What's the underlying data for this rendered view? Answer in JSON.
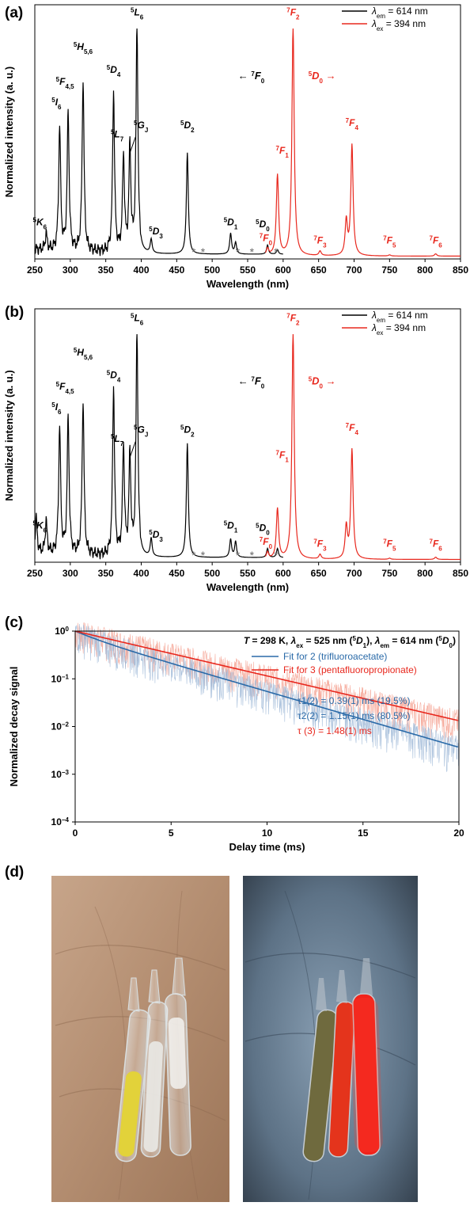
{
  "panels": {
    "a": {
      "label": "(a)",
      "xlabel": "Wavelength (nm)",
      "ylabel": "Normalized intensity (a. u.)",
      "legend": [
        {
          "text": "λem = 614 nm",
          "sym": "λ",
          "sub": "em",
          "rest": " = 614 nm",
          "color": "#000000"
        },
        {
          "text": "λex = 394 nm",
          "sym": "λ",
          "sub": "ex",
          "rest": " = 394 nm",
          "color": "#e8281e"
        }
      ],
      "arrow_left": "← 7F0",
      "arrow_right": "5D0 →"
    },
    "b": {
      "label": "(b)",
      "xlabel": "Wavelength (nm)",
      "ylabel": "Normalized intensity (a. u.)",
      "legend": [
        {
          "text": "λem = 614 nm",
          "sym": "λ",
          "sub": "em",
          "rest": " = 614 nm",
          "color": "#000000"
        },
        {
          "text": "λex = 394 nm",
          "sym": "λ",
          "sub": "ex",
          "rest": " = 394 nm",
          "color": "#e8281e"
        }
      ],
      "arrow_left": "← 7F0",
      "arrow_right": "5D0 →"
    },
    "c": {
      "label": "(c)",
      "xlabel": "Delay time (ms)",
      "ylabel": "Normalized decay signal",
      "header": "T = 298 K, λex = 525 nm (5D1), λem = 614 nm (5D0)",
      "legend": [
        {
          "text": "Fit for 2 (trifluoroacetate)",
          "color": "#2a6aa8"
        },
        {
          "text": "Fit for 3 (pentafluoropropionate)",
          "color": "#e8281e"
        }
      ],
      "lifetimes": [
        {
          "text": "τ1(2) = 0.39(1) ms (19.5%)",
          "color": "#2a6aa8"
        },
        {
          "text": "τ2(2) = 1.15(1) ms (80.5%)",
          "color": "#2a6aa8"
        },
        {
          "text": "τ (3) = 1.48(1) ms",
          "color": "#e8281e"
        }
      ]
    },
    "d": {
      "label": "(d)"
    }
  },
  "chart_data": [
    {
      "panel": "a",
      "type": "line",
      "xlabel": "Wavelength (nm)",
      "ylabel": "Normalized intensity (a. u.)",
      "xlim": [
        250,
        850
      ],
      "xticks": [
        250,
        300,
        350,
        400,
        450,
        500,
        550,
        600,
        650,
        700,
        750,
        800,
        850
      ],
      "ylim": [
        0,
        1
      ],
      "series": [
        {
          "name": "λem = 614 nm",
          "color": "#000000",
          "peaks": [
            [
              266,
              0.07
            ],
            [
              285,
              0.54
            ],
            [
              297,
              0.6
            ],
            [
              318,
              0.75
            ],
            [
              361,
              0.7
            ],
            [
              375,
              0.42
            ],
            [
              384,
              0.46
            ],
            [
              394,
              1.0
            ],
            [
              414,
              0.06
            ],
            [
              465,
              0.44
            ],
            [
              526,
              0.09
            ],
            [
              533,
              0.05
            ],
            [
              578,
              0.04
            ],
            [
              592,
              0.02
            ]
          ]
        },
        {
          "name": "λex = 394 nm",
          "color": "#e8281e",
          "peaks": [
            [
              578,
              0.03
            ],
            [
              592,
              0.35
            ],
            [
              614,
              1.0
            ],
            [
              652,
              0.02
            ],
            [
              689,
              0.15
            ],
            [
              697,
              0.48
            ],
            [
              750,
              0.005
            ],
            [
              815,
              0.01
            ]
          ]
        }
      ],
      "annotations": [
        {
          "text": "5K6",
          "x": 266
        },
        {
          "text": "5I6",
          "x": 285
        },
        {
          "text": "5F4,5",
          "x": 297
        },
        {
          "text": "5H5,6",
          "x": 318
        },
        {
          "text": "5D4",
          "x": 361
        },
        {
          "text": "5L7",
          "x": 375
        },
        {
          "text": "5GJ",
          "x": 384
        },
        {
          "text": "5L6",
          "x": 394
        },
        {
          "text": "5D3",
          "x": 414
        },
        {
          "text": "5D2",
          "x": 465
        },
        {
          "text": "5D1",
          "x": 526
        },
        {
          "text": "5D0",
          "x": 580
        },
        {
          "text": "7F0",
          "x": 580
        },
        {
          "text": "7F1",
          "x": 592
        },
        {
          "text": "7F2",
          "x": 614
        },
        {
          "text": "7F3",
          "x": 652
        },
        {
          "text": "7F4",
          "x": 697
        },
        {
          "text": "7F5",
          "x": 750
        },
        {
          "text": "7F6",
          "x": 815
        }
      ],
      "asterisks": [
        474,
        487,
        536,
        556,
        590
      ]
    },
    {
      "panel": "b",
      "type": "line",
      "xlabel": "Wavelength (nm)",
      "ylabel": "Normalized intensity (a. u.)",
      "xlim": [
        250,
        850
      ],
      "xticks": [
        250,
        300,
        350,
        400,
        450,
        500,
        550,
        600,
        650,
        700,
        750,
        800,
        850
      ],
      "ylim": [
        0,
        1
      ],
      "series": [
        {
          "name": "λem = 614 nm",
          "color": "#000000",
          "peaks": [
            [
              252,
              0.15
            ],
            [
              266,
              0.14
            ],
            [
              285,
              0.56
            ],
            [
              297,
              0.6
            ],
            [
              318,
              0.68
            ],
            [
              361,
              0.74
            ],
            [
              375,
              0.48
            ],
            [
              384,
              0.44
            ],
            [
              394,
              1.0
            ],
            [
              414,
              0.08
            ],
            [
              465,
              0.5
            ],
            [
              526,
              0.08
            ],
            [
              533,
              0.07
            ],
            [
              578,
              0.04
            ],
            [
              592,
              0.04
            ]
          ]
        },
        {
          "name": "λex = 394 nm",
          "color": "#e8281e",
          "peaks": [
            [
              578,
              0.03
            ],
            [
              592,
              0.22
            ],
            [
              614,
              1.0
            ],
            [
              652,
              0.02
            ],
            [
              689,
              0.14
            ],
            [
              697,
              0.48
            ],
            [
              750,
              0.005
            ],
            [
              815,
              0.01
            ]
          ]
        }
      ],
      "annotations": [
        {
          "text": "5K6",
          "x": 266
        },
        {
          "text": "5I6",
          "x": 285
        },
        {
          "text": "5F4,5",
          "x": 297
        },
        {
          "text": "5H5,6",
          "x": 318
        },
        {
          "text": "5D4",
          "x": 361
        },
        {
          "text": "5L7",
          "x": 375
        },
        {
          "text": "5GJ",
          "x": 384
        },
        {
          "text": "5L6",
          "x": 394
        },
        {
          "text": "5D3",
          "x": 414
        },
        {
          "text": "5D2",
          "x": 465
        },
        {
          "text": "5D1",
          "x": 526
        },
        {
          "text": "5D0",
          "x": 580
        },
        {
          "text": "7F0",
          "x": 580
        },
        {
          "text": "7F1",
          "x": 592
        },
        {
          "text": "7F2",
          "x": 614
        },
        {
          "text": "7F3",
          "x": 652
        },
        {
          "text": "7F4",
          "x": 697
        },
        {
          "text": "7F5",
          "x": 750
        },
        {
          "text": "7F6",
          "x": 815
        }
      ],
      "asterisks": [
        474,
        487,
        536,
        556,
        590
      ]
    },
    {
      "panel": "c",
      "type": "line",
      "xlabel": "Delay time (ms)",
      "ylabel": "Normalized decay signal",
      "xlim": [
        0,
        20
      ],
      "xticks": [
        0,
        5,
        10,
        15,
        20
      ],
      "ylim": [
        0.0001,
        1
      ],
      "yscale": "log",
      "yticks": [
        "10^0",
        "10^-1",
        "10^-2",
        "10^-3",
        "10^-4"
      ],
      "series": [
        {
          "name": "Fit for 2 (trifluoroacetate)",
          "color": "#2a6aa8",
          "model": "biexponential",
          "tau_ms": [
            0.39,
            1.15
          ],
          "fractions": [
            0.195,
            0.805
          ]
        },
        {
          "name": "Fit for 3 (pentafluoropropionate)",
          "color": "#e8281e",
          "model": "monoexponential",
          "tau_ms": [
            1.48
          ],
          "fractions": [
            1.0
          ]
        }
      ]
    }
  ]
}
